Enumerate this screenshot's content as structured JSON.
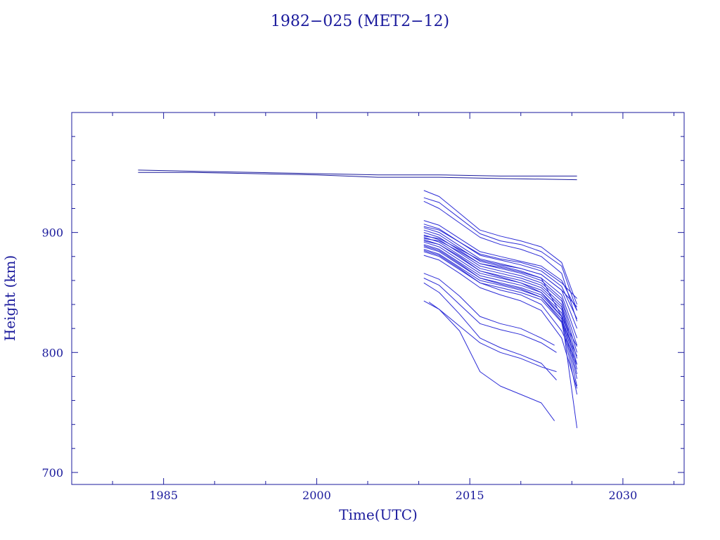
{
  "chart_data": {
    "type": "line",
    "title": "1982−025 (MET2−12)",
    "xlabel": "Time(UTC)",
    "ylabel": "Height (km)",
    "xlim": [
      1976.0,
      2036.0
    ],
    "ylim": [
      690,
      1000
    ],
    "x_ticks": [
      1985,
      2000,
      2015,
      2030
    ],
    "y_ticks": [
      700,
      800,
      900
    ],
    "grid": false,
    "colors": {
      "axes": "#1a1a9c",
      "older_series": "#1a1a9c",
      "debris_series": "#2b2bd6"
    },
    "series": [
      {
        "x": [
          1982.5,
          1988,
          1994,
          2000,
          2006,
          2012,
          2018,
          2025.5
        ],
        "y": [
          952,
          951,
          950,
          949,
          948,
          948,
          947,
          947
        ]
      },
      {
        "x": [
          1982.5,
          1988,
          1994,
          2000,
          2006,
          2012,
          2018,
          2025.5
        ],
        "y": [
          950,
          950,
          949,
          948,
          946,
          946,
          945,
          944
        ]
      },
      {
        "x": [
          2010.5,
          2012,
          2014,
          2016,
          2018,
          2020,
          2022,
          2023.5
        ],
        "y": [
          843,
          836,
          822,
          808,
          800,
          795,
          788,
          784
        ]
      },
      {
        "x": [
          2010.5,
          2012,
          2014,
          2016,
          2018,
          2020,
          2022,
          2023.5
        ],
        "y": [
          858,
          850,
          832,
          812,
          804,
          798,
          791,
          777
        ]
      },
      {
        "x": [
          2011,
          2012,
          2014,
          2016,
          2018,
          2020,
          2022,
          2023.3
        ],
        "y": [
          842,
          836,
          818,
          784,
          772,
          765,
          758,
          743
        ]
      },
      {
        "x": [
          2010.5,
          2012,
          2014,
          2016,
          2018,
          2020,
          2022,
          2023.3
        ],
        "y": [
          866,
          861,
          847,
          830,
          824,
          820,
          812,
          806
        ]
      },
      {
        "x": [
          2010.5,
          2012,
          2014,
          2016,
          2018,
          2020,
          2022,
          2023.5
        ],
        "y": [
          862,
          856,
          840,
          824,
          819,
          815,
          808,
          800
        ]
      },
      {
        "x": [
          2010.5,
          2012,
          2014,
          2016,
          2018,
          2020,
          2022,
          2024,
          2025.5
        ],
        "y": [
          935,
          930,
          916,
          902,
          897,
          893,
          888,
          875,
          840
        ]
      },
      {
        "x": [
          2010.5,
          2012,
          2014,
          2016,
          2018,
          2020,
          2022,
          2024,
          2025.5
        ],
        "y": [
          929,
          925,
          912,
          899,
          893,
          890,
          884,
          872,
          835
        ]
      },
      {
        "x": [
          2010.5,
          2012,
          2014,
          2016,
          2018,
          2020,
          2022,
          2024,
          2025.5
        ],
        "y": [
          926,
          920,
          908,
          896,
          890,
          886,
          880,
          866,
          826
        ]
      },
      {
        "x": [
          2010.5,
          2012,
          2014,
          2016,
          2018,
          2020,
          2022,
          2024,
          2025.5
        ],
        "y": [
          910,
          906,
          895,
          884,
          880,
          876,
          872,
          860,
          835
        ]
      },
      {
        "x": [
          2010.5,
          2012,
          2014,
          2016,
          2018,
          2020,
          2022,
          2024,
          2025.5
        ],
        "y": [
          907,
          903,
          892,
          881,
          877,
          873,
          868,
          855,
          828
        ]
      },
      {
        "x": [
          2010.5,
          2012,
          2014,
          2016,
          2018,
          2020,
          2022,
          2024,
          2025.5
        ],
        "y": [
          904,
          900,
          889,
          878,
          874,
          870,
          865,
          852,
          820
        ]
      },
      {
        "x": [
          2010.5,
          2012,
          2014,
          2016,
          2018,
          2020,
          2022,
          2024,
          2025.5
        ],
        "y": [
          902,
          898,
          887,
          876,
          872,
          868,
          862,
          848,
          812
        ]
      },
      {
        "x": [
          2010.5,
          2012,
          2014,
          2016,
          2018,
          2020,
          2022,
          2024,
          2025.5
        ],
        "y": [
          900,
          896,
          885,
          874,
          870,
          866,
          860,
          845,
          806
        ]
      },
      {
        "x": [
          2010.5,
          2012,
          2014,
          2016,
          2018,
          2020,
          2022,
          2024,
          2025.5
        ],
        "y": [
          898,
          894,
          883,
          872,
          868,
          864,
          858,
          843,
          800
        ]
      },
      {
        "x": [
          2010.5,
          2012,
          2014,
          2016,
          2018,
          2020,
          2022,
          2024,
          2025.5
        ],
        "y": [
          896,
          892,
          881,
          870,
          866,
          862,
          856,
          840,
          795
        ]
      },
      {
        "x": [
          2010.5,
          2012,
          2014,
          2016,
          2018,
          2020,
          2022,
          2024,
          2025.5
        ],
        "y": [
          894,
          890,
          879,
          868,
          864,
          860,
          854,
          838,
          790
        ]
      },
      {
        "x": [
          2010.5,
          2012,
          2014,
          2016,
          2018,
          2020,
          2022,
          2024,
          2025.5
        ],
        "y": [
          892,
          888,
          877,
          866,
          862,
          858,
          852,
          836,
          786
        ]
      },
      {
        "x": [
          2010.5,
          2012,
          2014,
          2016,
          2018,
          2020,
          2022,
          2024,
          2025.5
        ],
        "y": [
          890,
          886,
          875,
          864,
          860,
          856,
          850,
          833,
          782
        ]
      },
      {
        "x": [
          2010.5,
          2012,
          2014,
          2016,
          2018,
          2020,
          2022,
          2024,
          2025.5
        ],
        "y": [
          888,
          884,
          873,
          862,
          858,
          854,
          848,
          830,
          778
        ]
      },
      {
        "x": [
          2010.5,
          2012,
          2014,
          2016,
          2018,
          2020,
          2022,
          2024,
          2025.5
        ],
        "y": [
          886,
          882,
          871,
          860,
          856,
          852,
          846,
          828,
          772
        ]
      },
      {
        "x": [
          2010.5,
          2012,
          2014,
          2016,
          2018,
          2020,
          2022,
          2024,
          2025.5
        ],
        "y": [
          884,
          880,
          869,
          858,
          854,
          850,
          844,
          825,
          765
        ]
      },
      {
        "x": [
          2010.5,
          2012,
          2014,
          2016,
          2018,
          2020,
          2022,
          2024,
          2025.5
        ],
        "y": [
          905,
          902,
          892,
          882,
          878,
          875,
          870,
          858,
          845
        ]
      },
      {
        "x": [
          2010.5,
          2012,
          2014,
          2016,
          2018,
          2020,
          2022,
          2024,
          2025.5
        ],
        "y": [
          897,
          895,
          886,
          877,
          873,
          870,
          865,
          852,
          838
        ]
      },
      {
        "x": [
          2010.5,
          2012,
          2014,
          2016,
          2018,
          2020,
          2022,
          2024,
          2025.5
        ],
        "y": [
          893,
          890,
          880,
          868,
          863,
          858,
          850,
          830,
          805
        ]
      },
      {
        "x": [
          2010.5,
          2012,
          2014,
          2016,
          2018,
          2020,
          2022,
          2024,
          2025.5
        ],
        "y": [
          889,
          885,
          874,
          862,
          857,
          853,
          846,
          826,
          797
        ]
      },
      {
        "x": [
          2010.5,
          2012,
          2014,
          2016,
          2018,
          2020,
          2022,
          2024,
          2025.5
        ],
        "y": [
          885,
          881,
          870,
          858,
          852,
          848,
          840,
          818,
          790
        ]
      },
      {
        "x": [
          2010.5,
          2012,
          2014,
          2016,
          2018,
          2020,
          2022,
          2024,
          2025.5
        ],
        "y": [
          881,
          877,
          866,
          854,
          848,
          843,
          835,
          812,
          770
        ]
      },
      {
        "x": [
          2010.5,
          2012,
          2014,
          2016,
          2018,
          2020,
          2022,
          2024,
          2025.5
        ],
        "y": [
          895,
          893,
          884,
          874,
          871,
          867,
          862,
          830,
          737
        ]
      }
    ]
  }
}
